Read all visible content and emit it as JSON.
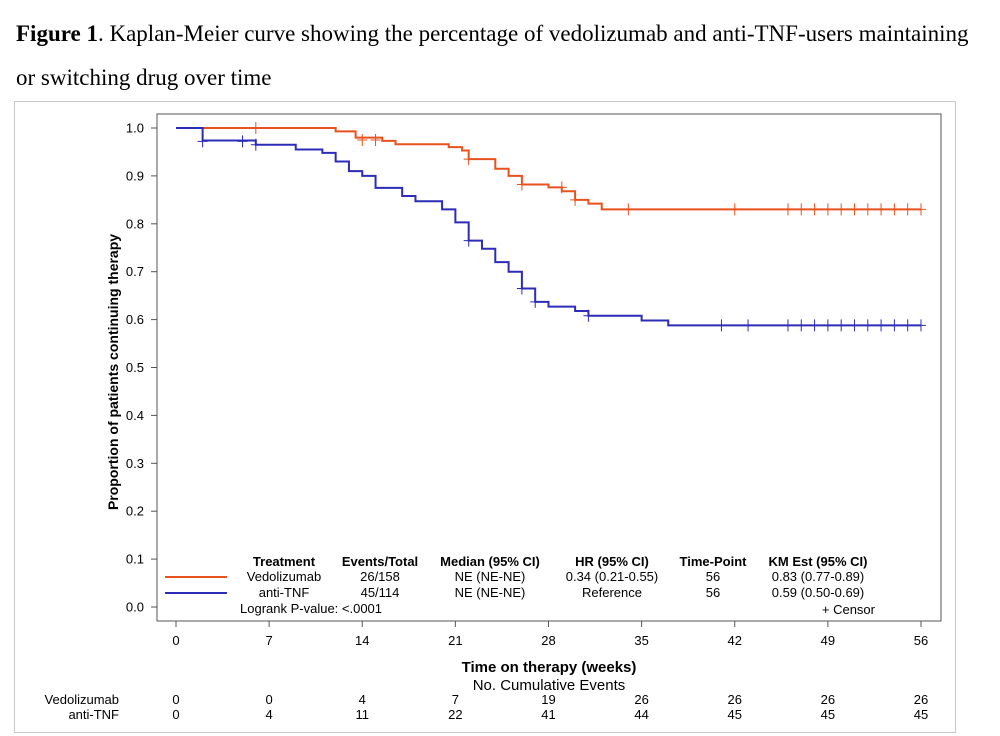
{
  "caption": {
    "label": "Figure 1",
    "text": ". Kaplan-Meier curve showing the percentage of vedolizumab and anti-TNF-users maintaining or switching drug over time"
  },
  "chart_data": {
    "type": "line",
    "step": true,
    "xlabel": "Time on therapy (weeks)",
    "ylabel": "Proportion of patients continuing therapy",
    "xlim": [
      0,
      56
    ],
    "ylim": [
      0,
      1
    ],
    "xticks": [
      0,
      7,
      14,
      21,
      28,
      35,
      42,
      49,
      56
    ],
    "yticks": [
      "0.0",
      "0.1",
      "0.2",
      "0.3",
      "0.4",
      "0.5",
      "0.6",
      "0.7",
      "0.8",
      "0.9",
      "1.0"
    ],
    "series": [
      {
        "name": "Vedolizumab",
        "color": "#e8521e",
        "points": [
          [
            0,
            1.0
          ],
          [
            12,
            0.993
          ],
          [
            13.5,
            0.98
          ],
          [
            15.5,
            0.973
          ],
          [
            16.5,
            0.966
          ],
          [
            20.5,
            0.96
          ],
          [
            21.5,
            0.953
          ],
          [
            22,
            0.935
          ],
          [
            24,
            0.915
          ],
          [
            25,
            0.9
          ],
          [
            26,
            0.882
          ],
          [
            28,
            0.876
          ],
          [
            29,
            0.868
          ],
          [
            30,
            0.85
          ],
          [
            31,
            0.842
          ],
          [
            32,
            0.83
          ],
          [
            56,
            0.83
          ]
        ],
        "censors": [
          [
            6,
            1.0
          ],
          [
            14,
            0.975
          ],
          [
            15,
            0.975
          ],
          [
            22,
            0.935
          ],
          [
            26,
            0.882
          ],
          [
            29,
            0.876
          ],
          [
            30,
            0.85
          ],
          [
            34,
            0.83
          ],
          [
            42,
            0.83
          ],
          [
            46,
            0.83
          ],
          [
            47,
            0.83
          ],
          [
            48,
            0.83
          ],
          [
            49,
            0.83
          ],
          [
            50,
            0.83
          ],
          [
            51,
            0.83
          ],
          [
            52,
            0.83
          ],
          [
            53,
            0.83
          ],
          [
            54,
            0.83
          ],
          [
            55,
            0.83
          ],
          [
            56,
            0.83
          ]
        ]
      },
      {
        "name": "anti-TNF",
        "color": "#2c2cb8",
        "points": [
          [
            0,
            1.0
          ],
          [
            2,
            0.974
          ],
          [
            6,
            0.965
          ],
          [
            9,
            0.955
          ],
          [
            11,
            0.948
          ],
          [
            12,
            0.93
          ],
          [
            13,
            0.91
          ],
          [
            14,
            0.9
          ],
          [
            15,
            0.875
          ],
          [
            17,
            0.858
          ],
          [
            18,
            0.847
          ],
          [
            20,
            0.83
          ],
          [
            21,
            0.803
          ],
          [
            22,
            0.765
          ],
          [
            23,
            0.748
          ],
          [
            24,
            0.72
          ],
          [
            25,
            0.7
          ],
          [
            26,
            0.665
          ],
          [
            27,
            0.637
          ],
          [
            28,
            0.627
          ],
          [
            30,
            0.618
          ],
          [
            31,
            0.608
          ],
          [
            35,
            0.598
          ],
          [
            37,
            0.588
          ],
          [
            56,
            0.588
          ]
        ],
        "censors": [
          [
            2,
            0.972
          ],
          [
            5,
            0.972
          ],
          [
            6,
            0.965
          ],
          [
            22,
            0.765
          ],
          [
            26,
            0.665
          ],
          [
            27,
            0.637
          ],
          [
            31,
            0.608
          ],
          [
            41,
            0.588
          ],
          [
            43,
            0.588
          ],
          [
            46,
            0.588
          ],
          [
            47,
            0.588
          ],
          [
            48,
            0.588
          ],
          [
            49,
            0.588
          ],
          [
            50,
            0.588
          ],
          [
            51,
            0.588
          ],
          [
            52,
            0.588
          ],
          [
            53,
            0.588
          ],
          [
            54,
            0.588
          ],
          [
            55,
            0.588
          ],
          [
            56,
            0.588
          ]
        ]
      }
    ],
    "legend": {
      "placement": "bottom-inside",
      "headers": [
        "Treatment",
        "Events/Total",
        "Median (95% CI)",
        "HR (95% CI)",
        "Time-Point",
        "KM Est (95% CI)"
      ],
      "rows": [
        [
          "Vedolizumab",
          "26/158",
          "NE (NE-NE)",
          "0.34 (0.21-0.55)",
          "56",
          "0.83 (0.77-0.89)"
        ],
        [
          "anti-TNF",
          "45/114",
          "NE (NE-NE)",
          "Reference",
          "56",
          "0.59 (0.50-0.69)"
        ]
      ],
      "logrank": "Logrank P-value: <.0001",
      "censor_label": "+ Censor"
    },
    "risk_table": {
      "title": "No. Cumulative Events",
      "rows": [
        {
          "label": "Vedolizumab",
          "values": [
            "0",
            "0",
            "4",
            "7",
            "19",
            "26",
            "26",
            "26",
            "26"
          ]
        },
        {
          "label": "anti-TNF",
          "values": [
            "0",
            "4",
            "11",
            "22",
            "41",
            "44",
            "45",
            "45",
            "45"
          ]
        }
      ]
    }
  }
}
